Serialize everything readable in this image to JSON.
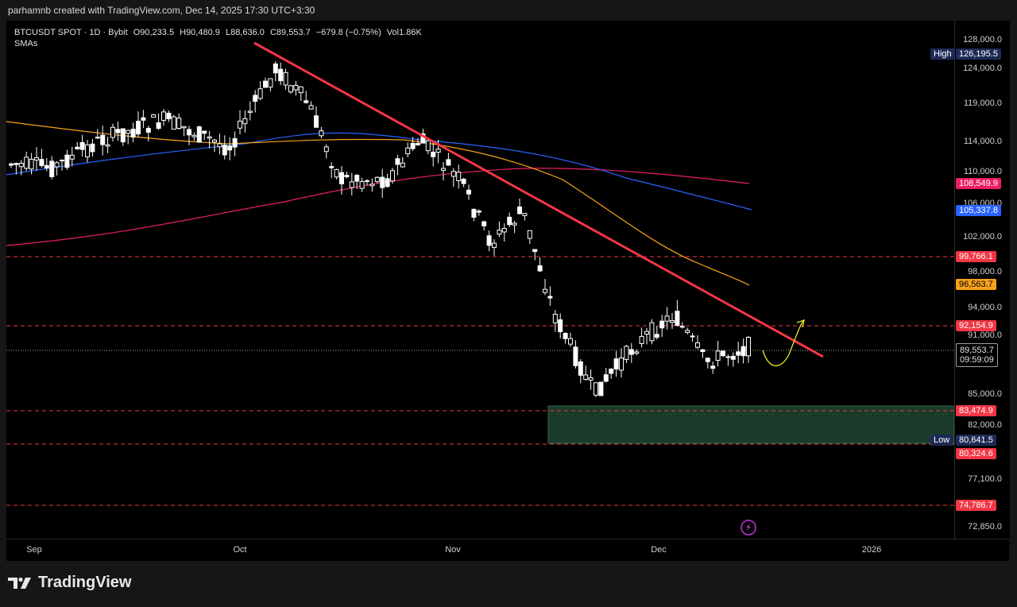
{
  "credit": "parhamnb created with TradingView.com, Dec 14, 2025 17:30 UTC+3:30",
  "header": {
    "symbol": "BTCUSDT SPOT · 1D · Bybit",
    "open": "O90,233.5",
    "high": "H90,480.9",
    "low": "L88,636.0",
    "close": "C89,553.7",
    "change": "−679.8 (−0.75%)",
    "volume": "Vol1.86K",
    "indicator": "SMAs"
  },
  "price_axis": {
    "ticks": [
      "128,000.0",
      "124,000.0",
      "119,000.0",
      "114,000.0",
      "110,000.0",
      "106,000.0",
      "102,000.0",
      "98,000.0",
      "94,000.0",
      "91,000.0",
      "85,000.0",
      "82,000.0",
      "77,100.0",
      "72,850.0"
    ],
    "high_tag": "High",
    "high_value": "126,195.5",
    "low_tag": "Low",
    "low_value": "80,641.5",
    "sma_red": "108,549.9",
    "sma_blue": "105,337.8",
    "sma_orange": "96,563.7",
    "levels": [
      "99,766.1",
      "92,154.9",
      "83,474.9",
      "80,324.6",
      "74,786.7"
    ],
    "current_price": "89,553.7",
    "countdown": "09:59:09"
  },
  "time_axis": {
    "labels": [
      "Sep",
      "Oct",
      "Nov",
      "Dec",
      "2026"
    ]
  },
  "colors": {
    "up": "#ffffff",
    "down": "#ffffff",
    "trendline": "#f23645",
    "sma_red": "#e91e63",
    "sma_blue": "#2962ff",
    "sma_orange": "#f7a21b",
    "level": "#f23645",
    "zone": "#1b3b2a",
    "projection": "#e6e62a"
  },
  "brand": "TradingView",
  "icons": {
    "logo": "tradingview-logo-icon",
    "alert": "lightning-icon"
  }
}
